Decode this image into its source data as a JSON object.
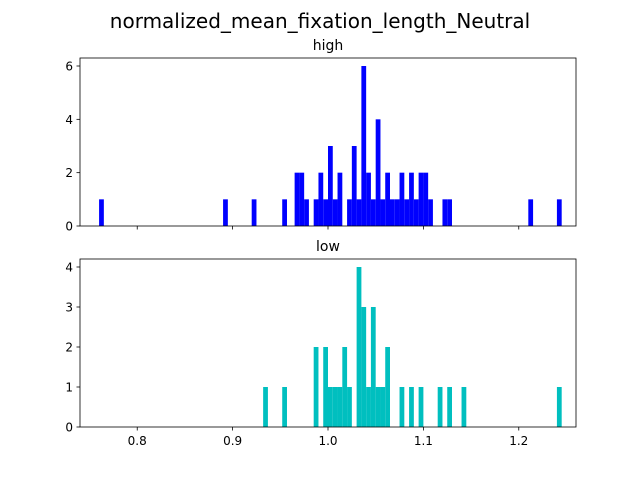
{
  "chart_data": {
    "type": "bar",
    "title": "normalized_mean_fixation_length_Neutral",
    "xlabel": "",
    "ylabel": "",
    "xlim": [
      0.74,
      1.26
    ],
    "x_ticks": [
      0.8,
      0.9,
      1.0,
      1.1,
      1.2
    ],
    "x_tick_labels": [
      "0.8",
      "0.9",
      "1.0",
      "1.1",
      "1.2"
    ],
    "grid": false,
    "bin_width": 0.005,
    "panels": [
      {
        "title": "high",
        "color": "#0000ff",
        "ylim": [
          0,
          6.3
        ],
        "y_ticks": [
          0,
          2,
          4,
          6
        ],
        "bins": [
          {
            "x": 0.76,
            "value": 1
          },
          {
            "x": 0.89,
            "value": 1
          },
          {
            "x": 0.92,
            "value": 1
          },
          {
            "x": 0.952,
            "value": 1
          },
          {
            "x": 0.965,
            "value": 2
          },
          {
            "x": 0.97,
            "value": 2
          },
          {
            "x": 0.975,
            "value": 1
          },
          {
            "x": 0.985,
            "value": 1
          },
          {
            "x": 0.99,
            "value": 2
          },
          {
            "x": 0.995,
            "value": 1
          },
          {
            "x": 1.0,
            "value": 3
          },
          {
            "x": 1.005,
            "value": 1
          },
          {
            "x": 1.01,
            "value": 2
          },
          {
            "x": 1.02,
            "value": 1
          },
          {
            "x": 1.025,
            "value": 3
          },
          {
            "x": 1.03,
            "value": 1
          },
          {
            "x": 1.035,
            "value": 6
          },
          {
            "x": 1.04,
            "value": 2
          },
          {
            "x": 1.045,
            "value": 1
          },
          {
            "x": 1.05,
            "value": 4
          },
          {
            "x": 1.055,
            "value": 1
          },
          {
            "x": 1.06,
            "value": 2
          },
          {
            "x": 1.065,
            "value": 1
          },
          {
            "x": 1.07,
            "value": 1
          },
          {
            "x": 1.075,
            "value": 2
          },
          {
            "x": 1.08,
            "value": 1
          },
          {
            "x": 1.085,
            "value": 2
          },
          {
            "x": 1.09,
            "value": 1
          },
          {
            "x": 1.095,
            "value": 2
          },
          {
            "x": 1.1,
            "value": 2
          },
          {
            "x": 1.105,
            "value": 1
          },
          {
            "x": 1.12,
            "value": 1
          },
          {
            "x": 1.125,
            "value": 1
          },
          {
            "x": 1.21,
            "value": 1
          },
          {
            "x": 1.24,
            "value": 1
          }
        ]
      },
      {
        "title": "low",
        "color": "#00bfbf",
        "ylim": [
          0,
          4.2
        ],
        "y_ticks": [
          0,
          1,
          2,
          3,
          4
        ],
        "bins": [
          {
            "x": 0.932,
            "value": 1
          },
          {
            "x": 0.952,
            "value": 1
          },
          {
            "x": 0.985,
            "value": 2
          },
          {
            "x": 0.995,
            "value": 2
          },
          {
            "x": 1.0,
            "value": 1
          },
          {
            "x": 1.005,
            "value": 1
          },
          {
            "x": 1.01,
            "value": 1
          },
          {
            "x": 1.015,
            "value": 2
          },
          {
            "x": 1.02,
            "value": 1
          },
          {
            "x": 1.03,
            "value": 4
          },
          {
            "x": 1.035,
            "value": 3
          },
          {
            "x": 1.04,
            "value": 1
          },
          {
            "x": 1.045,
            "value": 3
          },
          {
            "x": 1.05,
            "value": 1
          },
          {
            "x": 1.055,
            "value": 1
          },
          {
            "x": 1.06,
            "value": 2
          },
          {
            "x": 1.075,
            "value": 1
          },
          {
            "x": 1.085,
            "value": 1
          },
          {
            "x": 1.095,
            "value": 1
          },
          {
            "x": 1.115,
            "value": 1
          },
          {
            "x": 1.125,
            "value": 1
          },
          {
            "x": 1.14,
            "value": 1
          },
          {
            "x": 1.24,
            "value": 1
          }
        ]
      }
    ]
  }
}
